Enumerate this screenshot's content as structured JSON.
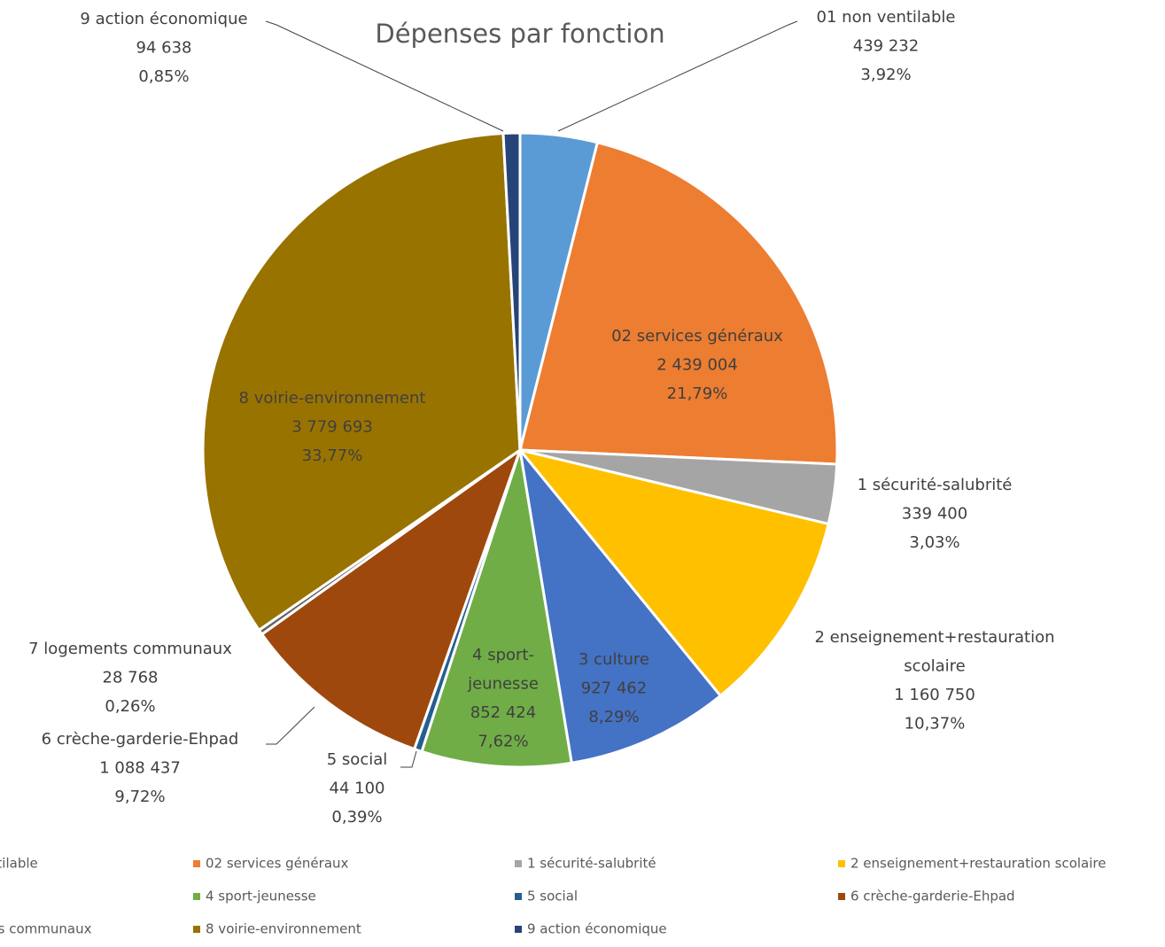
{
  "chart_data": {
    "type": "pie",
    "title": "Dépenses par fonction",
    "categories": [
      "01 non ventilable",
      "02 services généraux",
      "1 sécurité-salubrité",
      "2 enseignement+restauration scolaire",
      "3 culture",
      "4 sport-jeunesse",
      "5 social",
      "6 crèche-garderie-Ehpad",
      "7 logements communaux",
      "8 voirie-environnement",
      "9 action économique"
    ],
    "values": [
      439232,
      2439004,
      339400,
      1160750,
      927462,
      852424,
      44100,
      1088437,
      28768,
      3779693,
      94638
    ],
    "value_labels": [
      "439 232",
      "2 439 004",
      "339 400",
      "1 160 750",
      "927 462",
      "852 424",
      "44 100",
      "1 088 437",
      "28 768",
      "3 779 693",
      "94 638"
    ],
    "percents": [
      3.92,
      21.79,
      3.03,
      10.37,
      8.29,
      7.62,
      0.39,
      9.72,
      0.26,
      33.77,
      0.85
    ],
    "percent_labels": [
      "3,92%",
      "21,79%",
      "3,03%",
      "10,37%",
      "8,29%",
      "7,62%",
      "0,39%",
      "9,72%",
      "0,26%",
      "33,77%",
      "0,85%"
    ],
    "colors": [
      "#5b9bd5",
      "#ed7d31",
      "#a5a5a5",
      "#ffc000",
      "#4472c4",
      "#70ad47",
      "#255e91",
      "#9e480e",
      "#636363",
      "#997300",
      "#264478"
    ],
    "legend": "bottom"
  }
}
